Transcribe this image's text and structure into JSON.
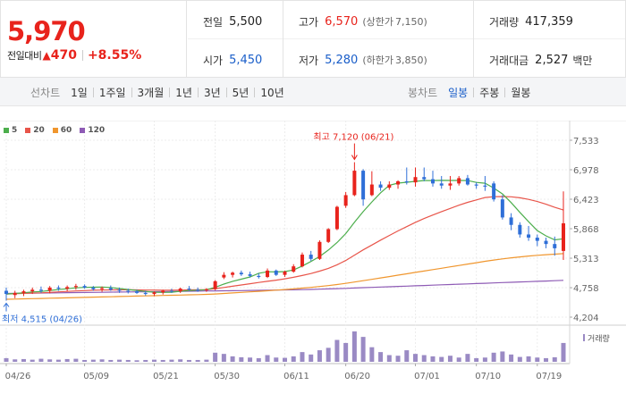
{
  "quote": {
    "price": "5,970",
    "change_label": "전일대비",
    "change_arrow": "▲",
    "change_value": "470",
    "change_pct": "+8.55%",
    "stats": {
      "prev_close": {
        "label": "전일",
        "value": "5,500"
      },
      "open": {
        "label": "시가",
        "value": "5,450"
      },
      "high": {
        "label": "고가",
        "value": "6,570",
        "sub_label": "(상한가",
        "sub_value": "7,150)"
      },
      "low": {
        "label": "저가",
        "value": "5,280",
        "sub_label": "(하한가",
        "sub_value": "3,850)"
      },
      "volume": {
        "label": "거래량",
        "value": "417,359"
      },
      "amount": {
        "label": "거래대금",
        "value": "2,527",
        "unit": "백만"
      }
    }
  },
  "toolbar": {
    "line_label": "선차트",
    "line_items": [
      "1일",
      "1주일",
      "3개월",
      "1년",
      "3년",
      "5년",
      "10년"
    ],
    "candle_label": "봉차트",
    "candle_items": [
      "일봉",
      "주봉",
      "월봉"
    ],
    "candle_active": "일봉"
  },
  "colors": {
    "up": "#e8231c",
    "down": "#2f6fd8",
    "ma5": "#4cae4c",
    "ma20": "#e8554a",
    "ma60": "#f0962e",
    "ma120": "#8e5bb5",
    "volume": "#9a8ac4",
    "max_annotation": "#e8231c",
    "min_annotation": "#2f6fd8"
  },
  "chart_data": {
    "type": "candlestick",
    "legend": [
      {
        "name": "5",
        "color_key": "ma5"
      },
      {
        "name": "20",
        "color_key": "ma20"
      },
      {
        "name": "60",
        "color_key": "ma60"
      },
      {
        "name": "120",
        "color_key": "ma120"
      }
    ],
    "y_ticks": [
      "7,533",
      "6,978",
      "6,423",
      "5,868",
      "5,313",
      "4,758",
      "4,204"
    ],
    "ylim": [
      4204,
      7533
    ],
    "x_ticks": [
      {
        "label": "04/26",
        "index": 0
      },
      {
        "label": "05/09",
        "index": 9
      },
      {
        "label": "05/21",
        "index": 17
      },
      {
        "label": "05/30",
        "index": 24
      },
      {
        "label": "06/11",
        "index": 32
      },
      {
        "label": "06/20",
        "index": 39
      },
      {
        "label": "07/01",
        "index": 47
      },
      {
        "label": "07/10",
        "index": 54
      },
      {
        "label": "07/19",
        "index": 61
      }
    ],
    "max_label": "최고 7,120 (06/21)",
    "min_label": "최저 4,515 (04/26)",
    "max_index": 40,
    "max_value": 7120,
    "min_index": 0,
    "min_value": 4515,
    "volume_legend": "거래량",
    "candles": [
      [
        4700,
        4760,
        4515,
        4640
      ],
      [
        4620,
        4700,
        4560,
        4660
      ],
      [
        4660,
        4720,
        4600,
        4690
      ],
      [
        4690,
        4760,
        4640,
        4720
      ],
      [
        4720,
        4780,
        4660,
        4700
      ],
      [
        4700,
        4790,
        4650,
        4760
      ],
      [
        4760,
        4800,
        4700,
        4740
      ],
      [
        4740,
        4800,
        4690,
        4770
      ],
      [
        4770,
        4830,
        4720,
        4790
      ],
      [
        4790,
        4820,
        4740,
        4760
      ],
      [
        4760,
        4790,
        4700,
        4730
      ],
      [
        4730,
        4780,
        4680,
        4750
      ],
      [
        4750,
        4800,
        4700,
        4720
      ],
      [
        4720,
        4760,
        4660,
        4700
      ],
      [
        4700,
        4740,
        4650,
        4690
      ],
      [
        4690,
        4720,
        4640,
        4660
      ],
      [
        4660,
        4700,
        4610,
        4640
      ],
      [
        4640,
        4690,
        4600,
        4670
      ],
      [
        4670,
        4720,
        4630,
        4700
      ],
      [
        4700,
        4740,
        4660,
        4690
      ],
      [
        4690,
        4760,
        4660,
        4740
      ],
      [
        4740,
        4790,
        4700,
        4720
      ],
      [
        4720,
        4760,
        4680,
        4710
      ],
      [
        4710,
        4750,
        4680,
        4730
      ],
      [
        4730,
        4900,
        4710,
        4880
      ],
      [
        4950,
        5050,
        4920,
        5000
      ],
      [
        5000,
        5060,
        4950,
        5040
      ],
      [
        5040,
        5080,
        4980,
        5010
      ],
      [
        5010,
        5060,
        4950,
        4980
      ],
      [
        4980,
        5030,
        4930,
        4960
      ],
      [
        4960,
        5120,
        4940,
        5080
      ],
      [
        5080,
        5100,
        4980,
        5000
      ],
      [
        5000,
        5080,
        4960,
        5060
      ],
      [
        5060,
        5200,
        5040,
        5160
      ],
      [
        5160,
        5420,
        5140,
        5380
      ],
      [
        5380,
        5450,
        5260,
        5300
      ],
      [
        5300,
        5650,
        5280,
        5620
      ],
      [
        5620,
        5880,
        5600,
        5860
      ],
      [
        5860,
        6300,
        5840,
        6280
      ],
      [
        6300,
        6560,
        6260,
        6500
      ],
      [
        6500,
        7120,
        6480,
        6960
      ],
      [
        6960,
        6990,
        6300,
        6420
      ],
      [
        6500,
        6950,
        6480,
        6700
      ],
      [
        6700,
        6760,
        6580,
        6640
      ],
      [
        6640,
        6760,
        6600,
        6700
      ],
      [
        6700,
        6780,
        6620,
        6760
      ],
      [
        6760,
        7020,
        6700,
        6740
      ],
      [
        6740,
        7020,
        6660,
        6840
      ],
      [
        6840,
        7020,
        6760,
        6800
      ],
      [
        6800,
        6960,
        6660,
        6720
      ],
      [
        6720,
        6860,
        6620,
        6680
      ],
      [
        6680,
        6860,
        6600,
        6720
      ],
      [
        6720,
        6860,
        6680,
        6820
      ],
      [
        6820,
        6880,
        6680,
        6700
      ],
      [
        6700,
        6740,
        6620,
        6680
      ],
      [
        6680,
        6860,
        6580,
        6660
      ],
      [
        6720,
        6760,
        6380,
        6420
      ],
      [
        6420,
        6500,
        6040,
        6080
      ],
      [
        6080,
        6160,
        5840,
        5940
      ],
      [
        5940,
        5990,
        5700,
        5760
      ],
      [
        5760,
        5920,
        5640,
        5700
      ],
      [
        5700,
        5760,
        5540,
        5640
      ],
      [
        5640,
        5700,
        5500,
        5580
      ],
      [
        5580,
        5720,
        5360,
        5500
      ],
      [
        5450,
        6570,
        5280,
        5970
      ]
    ],
    "ma5": [
      4640,
      4650,
      4663,
      4678,
      4686,
      4706,
      4722,
      4738,
      4756,
      4764,
      4768,
      4770,
      4762,
      4742,
      4724,
      4706,
      4688,
      4673,
      4669,
      4673,
      4692,
      4704,
      4712,
      4720,
      4764,
      4826,
      4878,
      4918,
      4960,
      5030,
      5058,
      5054,
      5062,
      5092,
      5166,
      5252,
      5346,
      5466,
      5608,
      5776,
      5990,
      6190,
      6372,
      6544,
      6686,
      6726,
      6742,
      6760,
      6774,
      6774,
      6778,
      6776,
      6776,
      6774,
      6740,
      6724,
      6634,
      6522,
      6360,
      6176,
      6000,
      5834,
      5734,
      5658,
      5678
    ],
    "ma20": [
      4640,
      4645,
      4652,
      4658,
      4662,
      4670,
      4680,
      4688,
      4697,
      4704,
      4710,
      4714,
      4716,
      4718,
      4718,
      4717,
      4714,
      4713,
      4712,
      4712,
      4713,
      4716,
      4719,
      4722,
      4740,
      4762,
      4786,
      4810,
      4832,
      4856,
      4878,
      4900,
      4926,
      4954,
      4988,
      5024,
      5070,
      5122,
      5190,
      5270,
      5370,
      5470,
      5560,
      5654,
      5740,
      5826,
      5908,
      5988,
      6060,
      6126,
      6190,
      6250,
      6310,
      6364,
      6410,
      6456,
      6470,
      6474,
      6468,
      6450,
      6420,
      6380,
      6330,
      6270,
      6220
    ],
    "ma60": [
      4540,
      4544,
      4548,
      4552,
      4556,
      4560,
      4564,
      4568,
      4572,
      4576,
      4580,
      4584,
      4588,
      4592,
      4596,
      4600,
      4604,
      4608,
      4612,
      4616,
      4620,
      4624,
      4628,
      4632,
      4640,
      4650,
      4660,
      4670,
      4680,
      4690,
      4700,
      4712,
      4724,
      4736,
      4750,
      4764,
      4780,
      4798,
      4818,
      4840,
      4864,
      4890,
      4916,
      4942,
      4968,
      4994,
      5020,
      5046,
      5072,
      5098,
      5124,
      5150,
      5176,
      5202,
      5228,
      5254,
      5278,
      5300,
      5320,
      5338,
      5354,
      5368,
      5380,
      5390,
      5400
    ],
    "ma120": [
      4650,
      4652,
      4654,
      4656,
      4658,
      4660,
      4662,
      4664,
      4666,
      4668,
      4670,
      4672,
      4674,
      4676,
      4678,
      4680,
      4682,
      4684,
      4686,
      4688,
      4690,
      4692,
      4694,
      4696,
      4698,
      4700,
      4702,
      4704,
      4706,
      4708,
      4710,
      4713,
      4716,
      4719,
      4722,
      4726,
      4730,
      4735,
      4740,
      4746,
      4752,
      4758,
      4764,
      4770,
      4776,
      4782,
      4788,
      4794,
      4800,
      4806,
      4812,
      4818,
      4824,
      4830,
      4836,
      4842,
      4848,
      4854,
      4860,
      4866,
      4872,
      4878,
      4884,
      4890,
      4896
    ],
    "volume": [
      12,
      8,
      9,
      7,
      10,
      8,
      7,
      9,
      10,
      6,
      7,
      8,
      6,
      7,
      6,
      5,
      6,
      7,
      6,
      7,
      8,
      6,
      6,
      7,
      30,
      26,
      18,
      15,
      14,
      12,
      22,
      14,
      13,
      18,
      32,
      24,
      38,
      46,
      72,
      62,
      100,
      82,
      48,
      32,
      22,
      20,
      38,
      26,
      22,
      18,
      16,
      20,
      14,
      26,
      12,
      14,
      30,
      34,
      24,
      16,
      18,
      14,
      12,
      15,
      62
    ]
  }
}
